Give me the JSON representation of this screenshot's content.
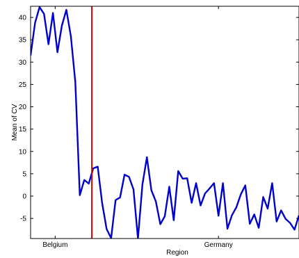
{
  "chart_data": {
    "type": "line",
    "title": "",
    "xlabel": "Region",
    "ylabel": "Mean of CV",
    "ylim": [
      -9.5,
      42.5
    ],
    "y_ticks": [
      -5,
      0,
      5,
      10,
      15,
      20,
      25,
      30,
      35,
      40
    ],
    "x_tick_labels": [
      {
        "label": "Belgium",
        "x": 5.5
      },
      {
        "label": "Germany",
        "x": 42
      }
    ],
    "xlim": [
      0,
      60
    ],
    "grid": false,
    "legend": "none",
    "vertical_marker": {
      "x": 13.7,
      "color": "#cc0000"
    },
    "series": [
      {
        "color": "#0000cc",
        "x": [
          0,
          1,
          2,
          3,
          4,
          5,
          6,
          7,
          8,
          9,
          10,
          11,
          12,
          13,
          14,
          15,
          16,
          17,
          18,
          19,
          20,
          21,
          22,
          23,
          24,
          25,
          26,
          27,
          28,
          29,
          30,
          31,
          32,
          33,
          34,
          35,
          36,
          37,
          38,
          39,
          40,
          41,
          42,
          43,
          44,
          45,
          46,
          47,
          48,
          49,
          50,
          51,
          52,
          53,
          54,
          55,
          56,
          57,
          58,
          59,
          60
        ],
        "values": [
          31.5,
          38.8,
          42.3,
          40.8,
          34.0,
          41.0,
          32.2,
          38.2,
          41.7,
          35.8,
          25.5,
          0.2,
          3.6,
          2.8,
          6.2,
          6.6,
          -1.6,
          -7.4,
          -9.4,
          -0.9,
          -0.3,
          4.8,
          4.3,
          1.5,
          -9.5,
          2.6,
          8.7,
          1.3,
          -1.2,
          -6.3,
          -4.5,
          2.1,
          -5.4,
          5.6,
          3.9,
          4.0,
          -1.5,
          2.9,
          -2.1,
          0.6,
          1.7,
          2.9,
          -4.4,
          2.9,
          -7.3,
          -4.3,
          -2.5,
          0.4,
          2.4,
          -6.2,
          -4.1,
          -7.1,
          -0.2,
          -2.8,
          2.9,
          -5.7,
          -3.2,
          -5.1,
          -6.0,
          -7.5,
          -4.3
        ]
      }
    ]
  }
}
